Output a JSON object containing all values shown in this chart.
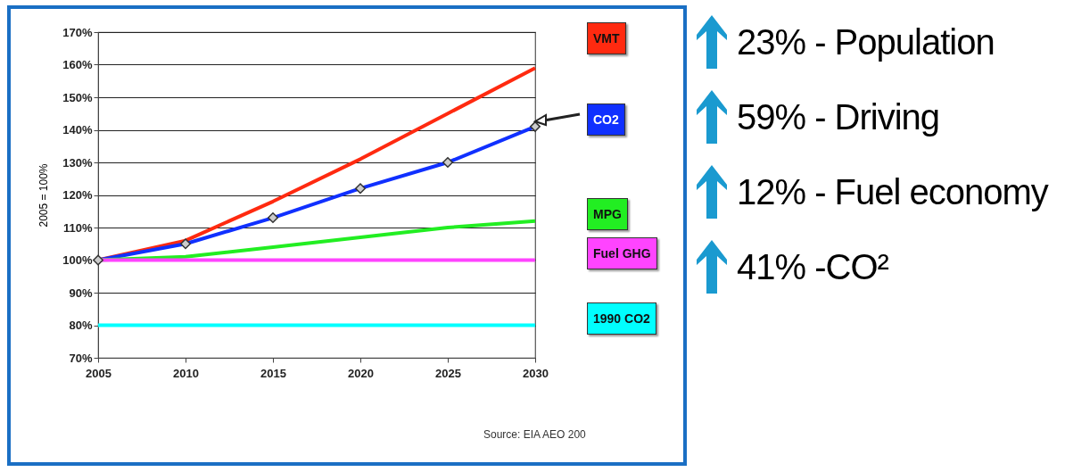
{
  "chart_data": {
    "type": "line",
    "ylabel": "2005 = 100%",
    "x": [
      2005,
      2010,
      2015,
      2020,
      2025,
      2030
    ],
    "series": [
      {
        "name": "VMT",
        "color": "#ff2a10",
        "values": [
          100,
          106,
          118,
          131,
          145,
          159
        ]
      },
      {
        "name": "CO2",
        "color": "#1030ff",
        "values": [
          100,
          105,
          113,
          122,
          130,
          141
        ],
        "marker": "diamond"
      },
      {
        "name": "MPG",
        "color": "#22ee22",
        "values": [
          100,
          101,
          104,
          107,
          110,
          112
        ]
      },
      {
        "name": "Fuel GHG",
        "color": "#ff44ff",
        "values": [
          100,
          100,
          100,
          100,
          100,
          100
        ]
      },
      {
        "name": "1990 CO2",
        "color": "#00ffff",
        "values": [
          80,
          80,
          80,
          80,
          80,
          80
        ]
      }
    ],
    "xlim": [
      2005,
      2030
    ],
    "xticks": [
      2005,
      2010,
      2015,
      2020,
      2025,
      2030
    ],
    "ylim": [
      70,
      170
    ],
    "yticks": [
      {
        "value": 70,
        "label": "70%"
      },
      {
        "value": 80,
        "label": "80%"
      },
      {
        "value": 90,
        "label": "90%"
      },
      {
        "value": 100,
        "label": "100%"
      },
      {
        "value": 110,
        "label": "110%"
      },
      {
        "value": 120,
        "label": "120%"
      },
      {
        "value": 130,
        "label": "130%"
      },
      {
        "value": 140,
        "label": "140%"
      },
      {
        "value": 150,
        "label": "150%"
      },
      {
        "value": 160,
        "label": "160%"
      },
      {
        "value": 170,
        "label": "170%"
      }
    ],
    "grid": "y",
    "legend": "right",
    "annotations": [
      "Source: EIA AEO 200",
      "23% - Population",
      "59% - Driving",
      "12% - Fuel economy",
      "41% -CO²"
    ]
  }
}
